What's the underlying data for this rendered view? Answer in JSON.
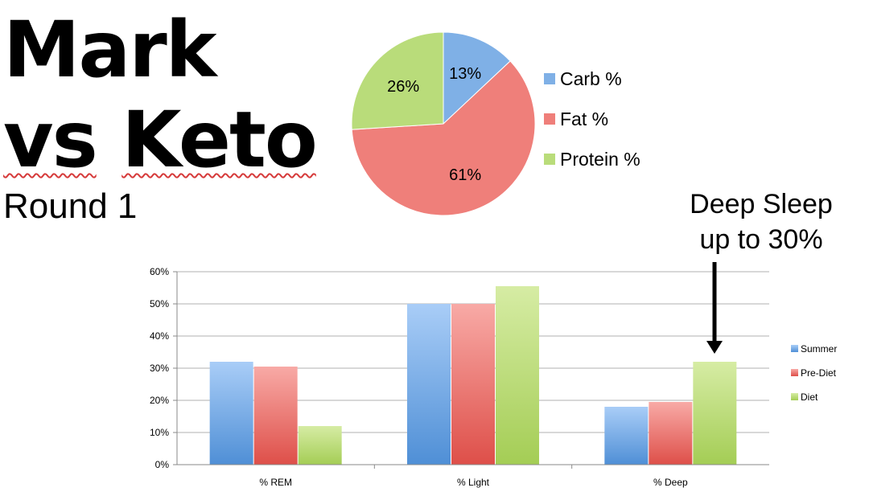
{
  "slide": {
    "title_line1": "Mark",
    "title_line2_part1": "vs",
    "title_line2_part2": "Keto",
    "subtitle": "Round 1",
    "annotation_line1": "Deep Sleep",
    "annotation_line2": "up to 30%"
  },
  "colors": {
    "blue": "#5b9bd5",
    "red": "#e6605a",
    "green": "#b5d96a"
  },
  "chart_data": [
    {
      "type": "pie",
      "slices": [
        {
          "label": "Carb %",
          "value": 13,
          "display": "13%",
          "color": "#7fb0e6"
        },
        {
          "label": "Fat %",
          "value": 61,
          "display": "61%",
          "color": "#ef7f7a"
        },
        {
          "label": "Protein %",
          "value": 26,
          "display": "26%",
          "color": "#b9dc7a"
        }
      ],
      "legend": "right"
    },
    {
      "type": "bar",
      "categories": [
        "% REM",
        "% Light",
        "% Deep"
      ],
      "series": [
        {
          "name": "Summer",
          "values": [
            32,
            50,
            18
          ],
          "color": "#7fb0e6"
        },
        {
          "name": "Pre-Diet",
          "values": [
            30.5,
            50,
            19.5
          ],
          "color": "#ef7f7a"
        },
        {
          "name": "Diet",
          "values": [
            12,
            55.5,
            32
          ],
          "color": "#b9dc7a"
        }
      ],
      "ylim": [
        0,
        60
      ],
      "yticks": [
        "0%",
        "10%",
        "20%",
        "30%",
        "40%",
        "50%",
        "60%"
      ],
      "grid": true,
      "legend": "right"
    }
  ]
}
